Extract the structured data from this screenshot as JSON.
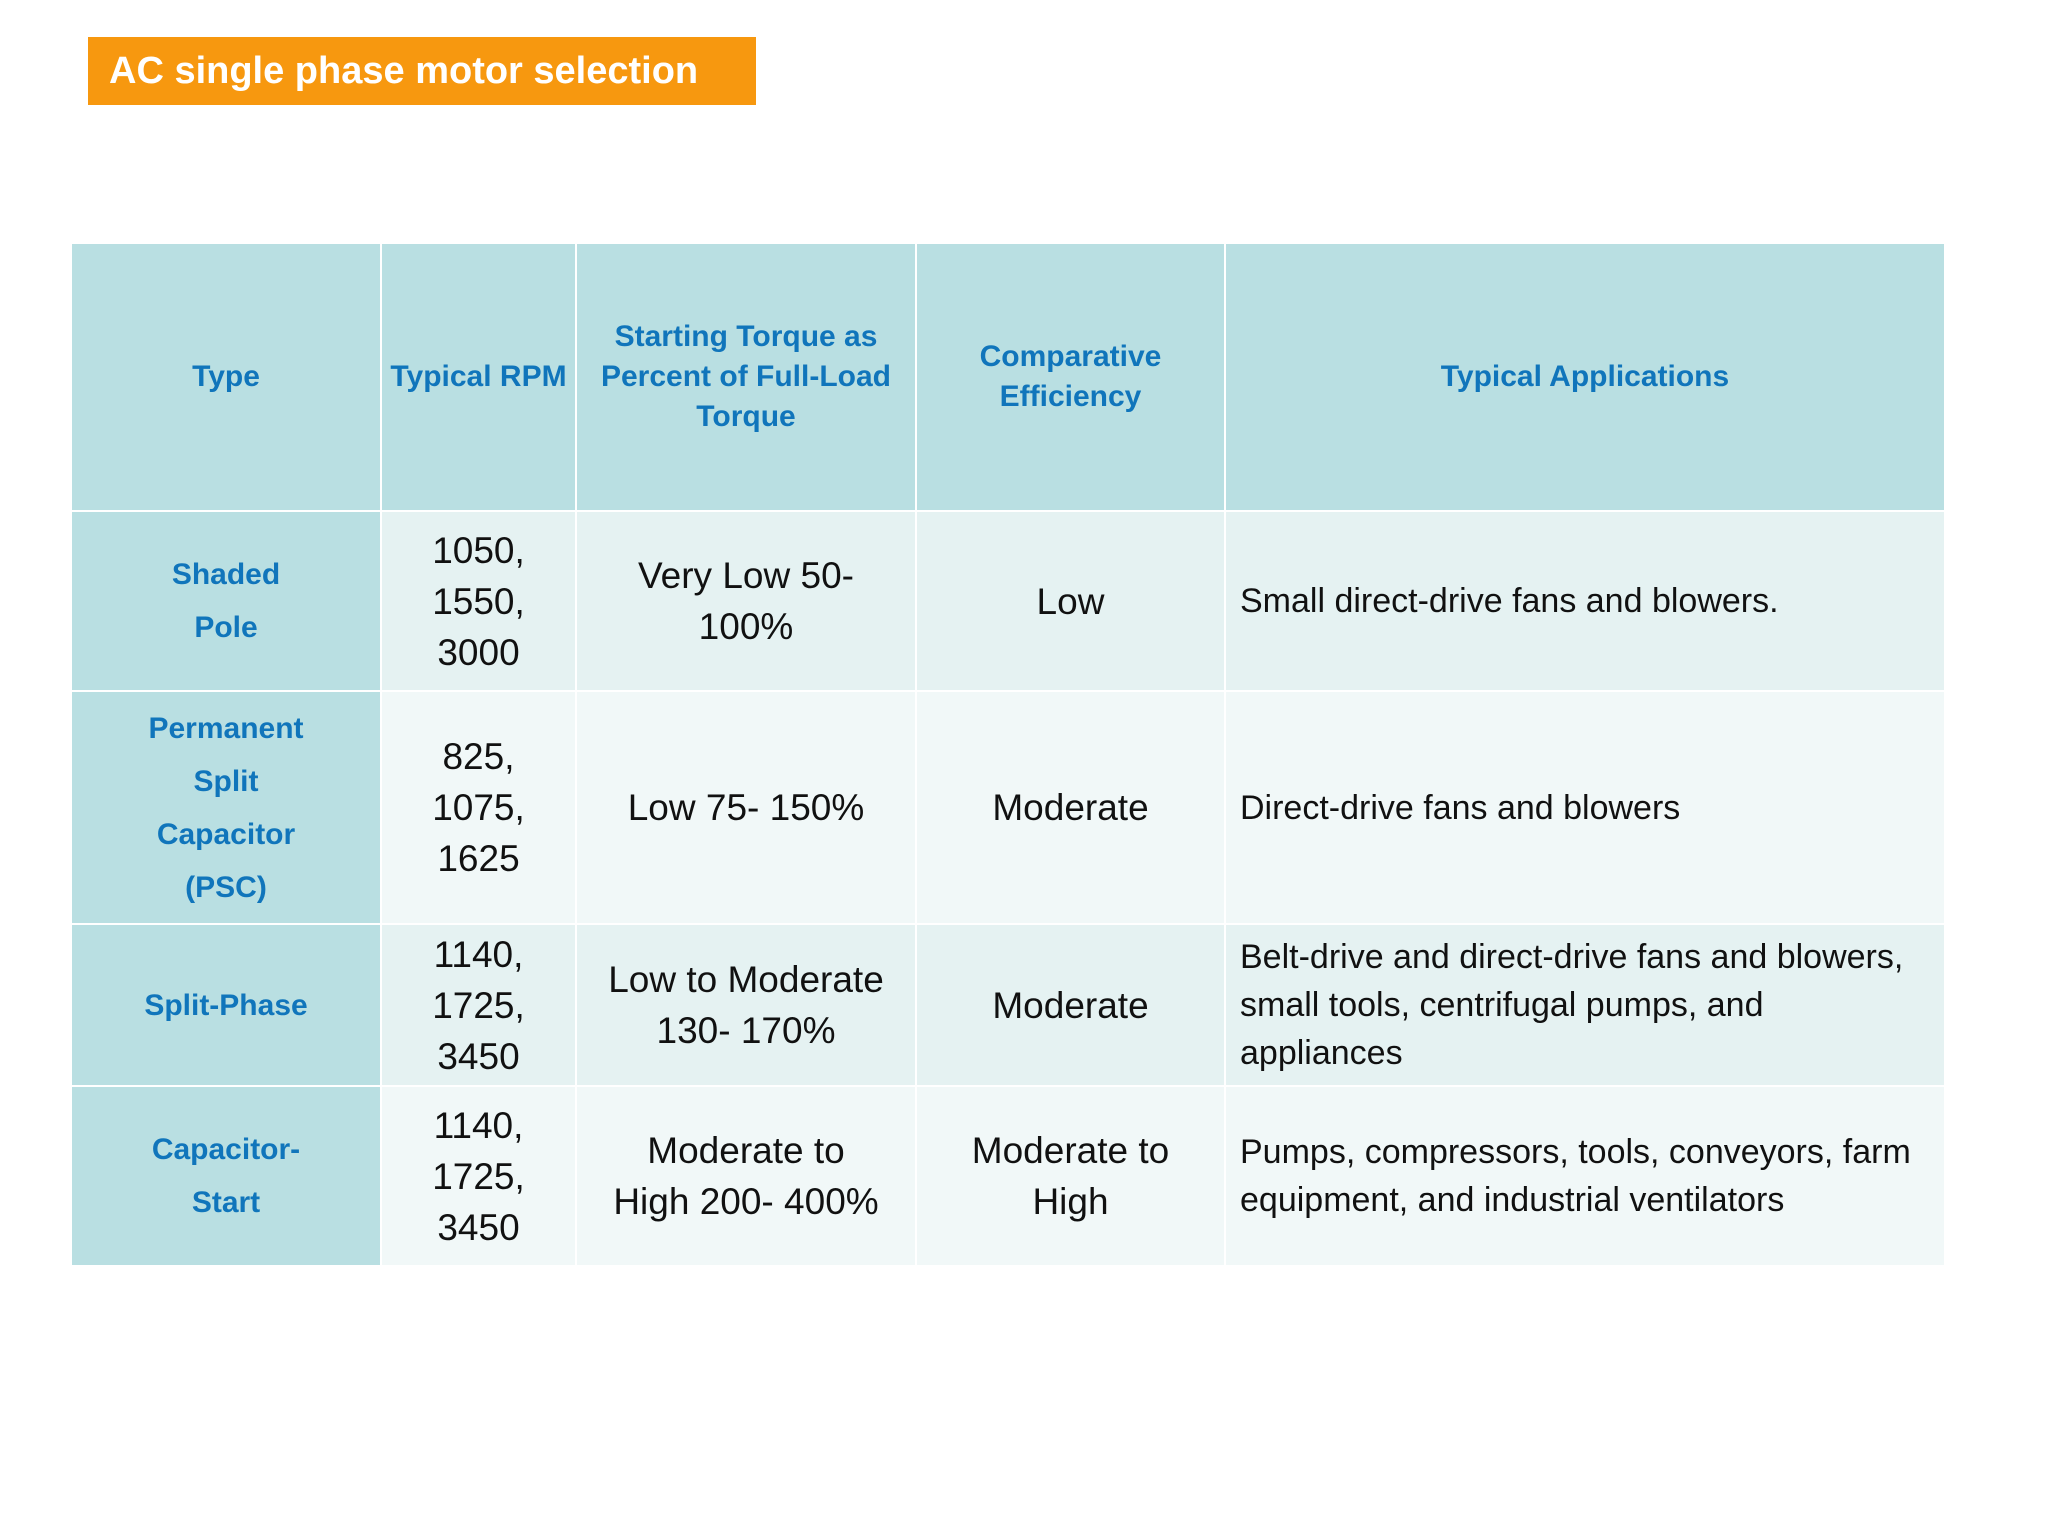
{
  "title": "AC single phase motor selection",
  "table": {
    "headers": {
      "type": "Type",
      "rpm": "Typical RPM",
      "torque": "Starting Torque as Percent of Full-Load Torque",
      "efficiency": "Comparative Efficiency",
      "applications": "Typical Applications"
    },
    "rows": [
      {
        "type": "Shaded Pole",
        "rpm": "1050, 1550, 3000",
        "torque": "Very Low 50-100%",
        "efficiency": "Low",
        "applications": "Small direct-drive fans and blowers."
      },
      {
        "type": "Permanent Split Capacitor (PSC)",
        "rpm": "825, 1075, 1625",
        "torque": "Low 75- 150%",
        "efficiency": "Moderate",
        "applications": "Direct-drive fans and blowers"
      },
      {
        "type": "Split-Phase",
        "rpm": "1140, 1725, 3450",
        "torque": "Low to Moderate 130- 170%",
        "efficiency": "Moderate",
        "applications": "Belt-drive and direct-drive fans and blowers, small tools, centrifugal pumps, and appliances"
      },
      {
        "type": "Capacitor-Start",
        "rpm": "1140, 1725, 3450",
        "torque": "Moderate to High 200- 400%",
        "efficiency": "Moderate to High",
        "applications": "Pumps, compressors, tools, conveyors, farm equipment, and industrial ventilators"
      }
    ]
  }
}
